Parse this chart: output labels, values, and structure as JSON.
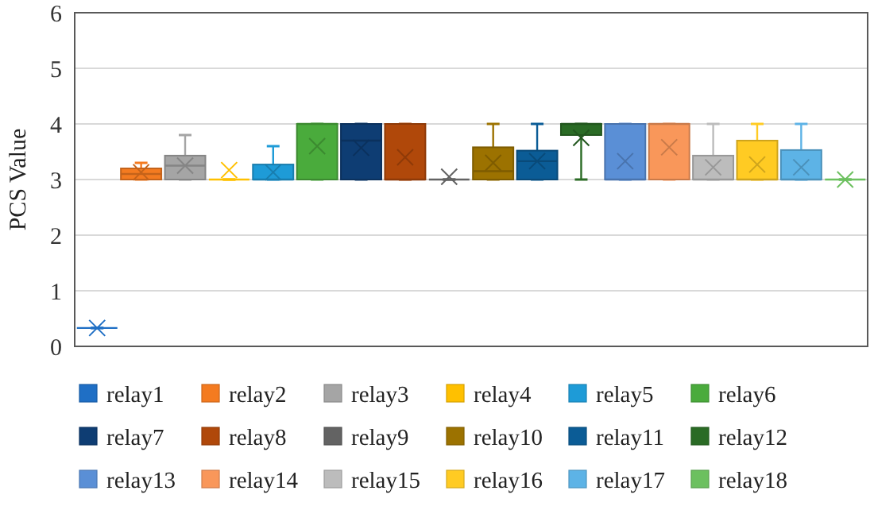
{
  "chart_data": {
    "type": "box",
    "ylabel": "PCS Value",
    "categories": [
      null
    ],
    "ylim": [
      0,
      6
    ],
    "yticks": [
      0,
      1,
      2,
      3,
      4,
      5,
      6
    ],
    "grid": "y",
    "legend": "bottom",
    "marker": "cross",
    "series": [
      {
        "name": "relay1",
        "color": "#1f6fc5",
        "boxes": [
          {
            "low": 0.33,
            "q1": 0.33,
            "median": 0.33,
            "q3": 0.33,
            "high": 0.33,
            "mean": 0.33
          }
        ]
      },
      {
        "name": "relay2",
        "color": "#f47b20",
        "boxes": [
          {
            "low": 3,
            "q1": 3,
            "median": 3.1,
            "q3": 3.2,
            "high": 3.3,
            "mean": 3.13
          }
        ]
      },
      {
        "name": "relay3",
        "color": "#a5a5a5",
        "boxes": [
          {
            "low": 3,
            "q1": 3,
            "median": 3.25,
            "q3": 3.43,
            "high": 3.8,
            "mean": 3.25
          }
        ]
      },
      {
        "name": "relay4",
        "color": "#ffc000",
        "boxes": [
          {
            "low": 3,
            "q1": 3,
            "median": 3,
            "q3": 3,
            "high": 3,
            "mean": 3.17
          }
        ]
      },
      {
        "name": "relay5",
        "color": "#1e9bd7",
        "boxes": [
          {
            "low": 3,
            "q1": 3,
            "median": 3,
            "q3": 3.27,
            "high": 3.6,
            "mean": 3.13
          }
        ]
      },
      {
        "name": "relay6",
        "color": "#4aab3c",
        "boxes": [
          {
            "low": 3,
            "q1": 3,
            "median": 4,
            "q3": 4,
            "high": 4,
            "mean": 3.6
          }
        ]
      },
      {
        "name": "relay7",
        "color": "#0e3d73",
        "boxes": [
          {
            "low": 3,
            "q1": 3,
            "median": 3.7,
            "q3": 4,
            "high": 4,
            "mean": 3.57
          }
        ]
      },
      {
        "name": "relay8",
        "color": "#b0480a",
        "boxes": [
          {
            "low": 3,
            "q1": 3,
            "median": 3,
            "q3": 4,
            "high": 4,
            "mean": 3.4
          }
        ]
      },
      {
        "name": "relay9",
        "color": "#636363",
        "boxes": [
          {
            "low": 3,
            "q1": 3,
            "median": 3,
            "q3": 3,
            "high": 3,
            "mean": 3.05
          }
        ]
      },
      {
        "name": "relay10",
        "color": "#9c7200",
        "boxes": [
          {
            "low": 3,
            "q1": 3,
            "median": 3.15,
            "q3": 3.58,
            "high": 4,
            "mean": 3.3
          }
        ]
      },
      {
        "name": "relay11",
        "color": "#0b5c96",
        "boxes": [
          {
            "low": 3,
            "q1": 3,
            "median": 3.33,
            "q3": 3.52,
            "high": 4,
            "mean": 3.33
          }
        ]
      },
      {
        "name": "relay12",
        "color": "#2a6b25",
        "boxes": [
          {
            "low": 3,
            "q1": 3.8,
            "median": 4,
            "q3": 4,
            "high": 4,
            "mean": 3.75
          }
        ]
      },
      {
        "name": "relay13",
        "color": "#5a8fd6",
        "boxes": [
          {
            "low": 3,
            "q1": 3,
            "median": 3,
            "q3": 4,
            "high": 4,
            "mean": 3.33
          }
        ]
      },
      {
        "name": "relay14",
        "color": "#f9975a",
        "boxes": [
          {
            "low": 3,
            "q1": 3,
            "median": 4,
            "q3": 4,
            "high": 4,
            "mean": 3.58
          }
        ]
      },
      {
        "name": "relay15",
        "color": "#bcbcbc",
        "boxes": [
          {
            "low": 3,
            "q1": 3,
            "median": 3,
            "q3": 3.43,
            "high": 4,
            "mean": 3.22
          }
        ]
      },
      {
        "name": "relay16",
        "color": "#ffcb23",
        "boxes": [
          {
            "low": 3,
            "q1": 3,
            "median": 3,
            "q3": 3.7,
            "high": 4,
            "mean": 3.27
          }
        ]
      },
      {
        "name": "relay17",
        "color": "#5db3e6",
        "boxes": [
          {
            "low": 3,
            "q1": 3,
            "median": 3,
            "q3": 3.53,
            "high": 4,
            "mean": 3.22
          }
        ]
      },
      {
        "name": "relay18",
        "color": "#6cc05f",
        "boxes": [
          {
            "low": 3,
            "q1": 3,
            "median": 3,
            "q3": 3,
            "high": 3,
            "mean": 3
          }
        ]
      }
    ]
  }
}
